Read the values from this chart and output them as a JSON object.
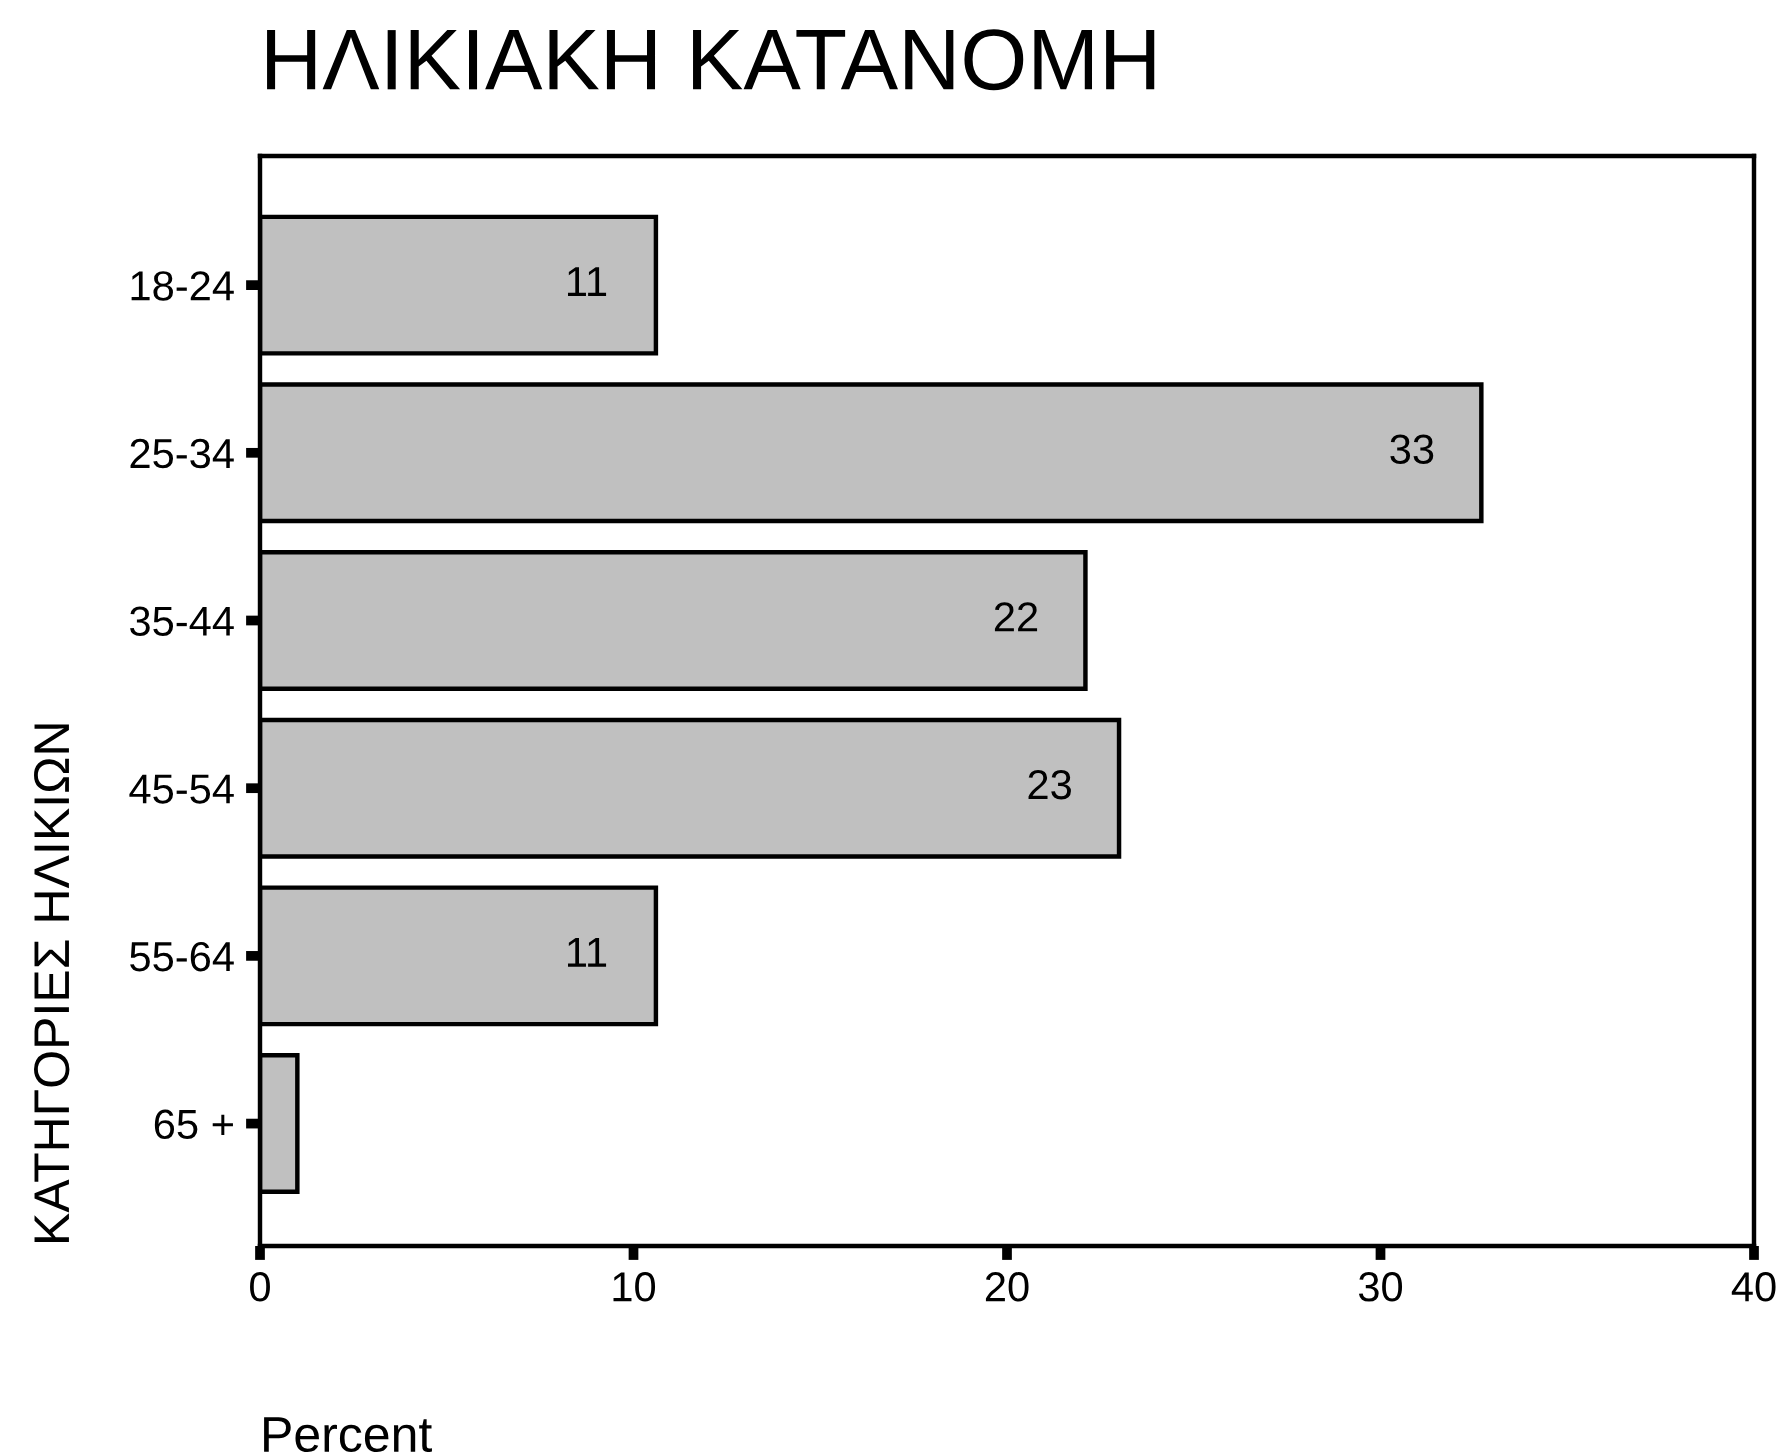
{
  "chart_data": {
    "type": "bar",
    "orientation": "horizontal",
    "title": "ΗΛΙΚΙΑΚΗ ΚΑΤΑΝΟΜΗ",
    "xlabel": "Percent",
    "ylabel": "ΚΑΤΗΓΟΡΙΕΣ ΗΛΙΚΙΩΝ",
    "categories": [
      "18-24",
      "25-34",
      "35-44",
      "45-54",
      "55-64",
      "65 +"
    ],
    "values": [
      10.6,
      32.7,
      22.1,
      23.0,
      10.6,
      1.0
    ],
    "value_labels": [
      "11",
      "33",
      "22",
      "23",
      "11",
      null
    ],
    "color": "#c0c0c0",
    "xlim": [
      0,
      40
    ],
    "xticks": [
      0,
      10,
      20,
      30,
      40
    ]
  }
}
